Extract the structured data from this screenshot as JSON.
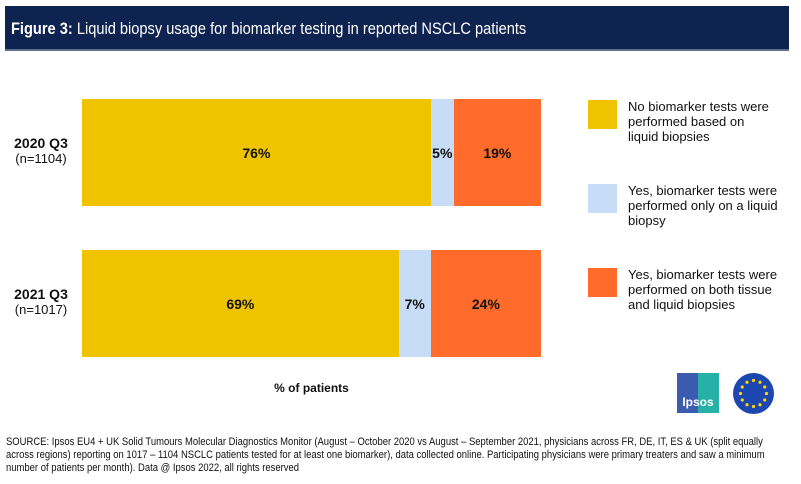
{
  "header": {
    "figure_label": "Figure 3:",
    "title": "Liquid biopsy usage for biomarker testing in reported NSCLC patients"
  },
  "chart_data": {
    "type": "bar",
    "orientation": "horizontal",
    "stacked": true,
    "title": "Liquid biopsy usage for biomarker testing in reported NSCLC patients",
    "xlabel": "% of patients",
    "categories": [
      {
        "label": "2020 Q3",
        "n": "(n=1104)"
      },
      {
        "label": "2021 Q3",
        "n": "(n=1017)"
      }
    ],
    "series": [
      {
        "name": "No biomarker tests were performed based on liquid biopsies",
        "color": "#f0c300",
        "values": [
          76,
          69
        ]
      },
      {
        "name": "Yes, biomarker tests were performed only on a liquid biopsy",
        "color": "#c6dcf7",
        "values": [
          5,
          7
        ]
      },
      {
        "name": "Yes, biomarker tests were performed on both tissue and liquid biopsies",
        "color": "#ff6b2b",
        "values": [
          19,
          24
        ]
      }
    ],
    "xlim": [
      0,
      100
    ],
    "legend": "right",
    "grid": false
  },
  "logos": {
    "ipsos": "Ipsos",
    "eu": "eu-flag-icon"
  },
  "source": "SOURCE: Ipsos EU4 + UK Solid Tumours Molecular Diagnostics Monitor (August – October 2020 vs August – September 2021, physicians across FR, DE, IT, ES & UK (split equally across regions) reporting on 1017 – 1104 NSCLC patients tested for at least one biomarker), data collected online. Participating physicians were primary treaters and saw a minimum number of patients per month). Data @ Ipsos 2022, all rights reserved"
}
